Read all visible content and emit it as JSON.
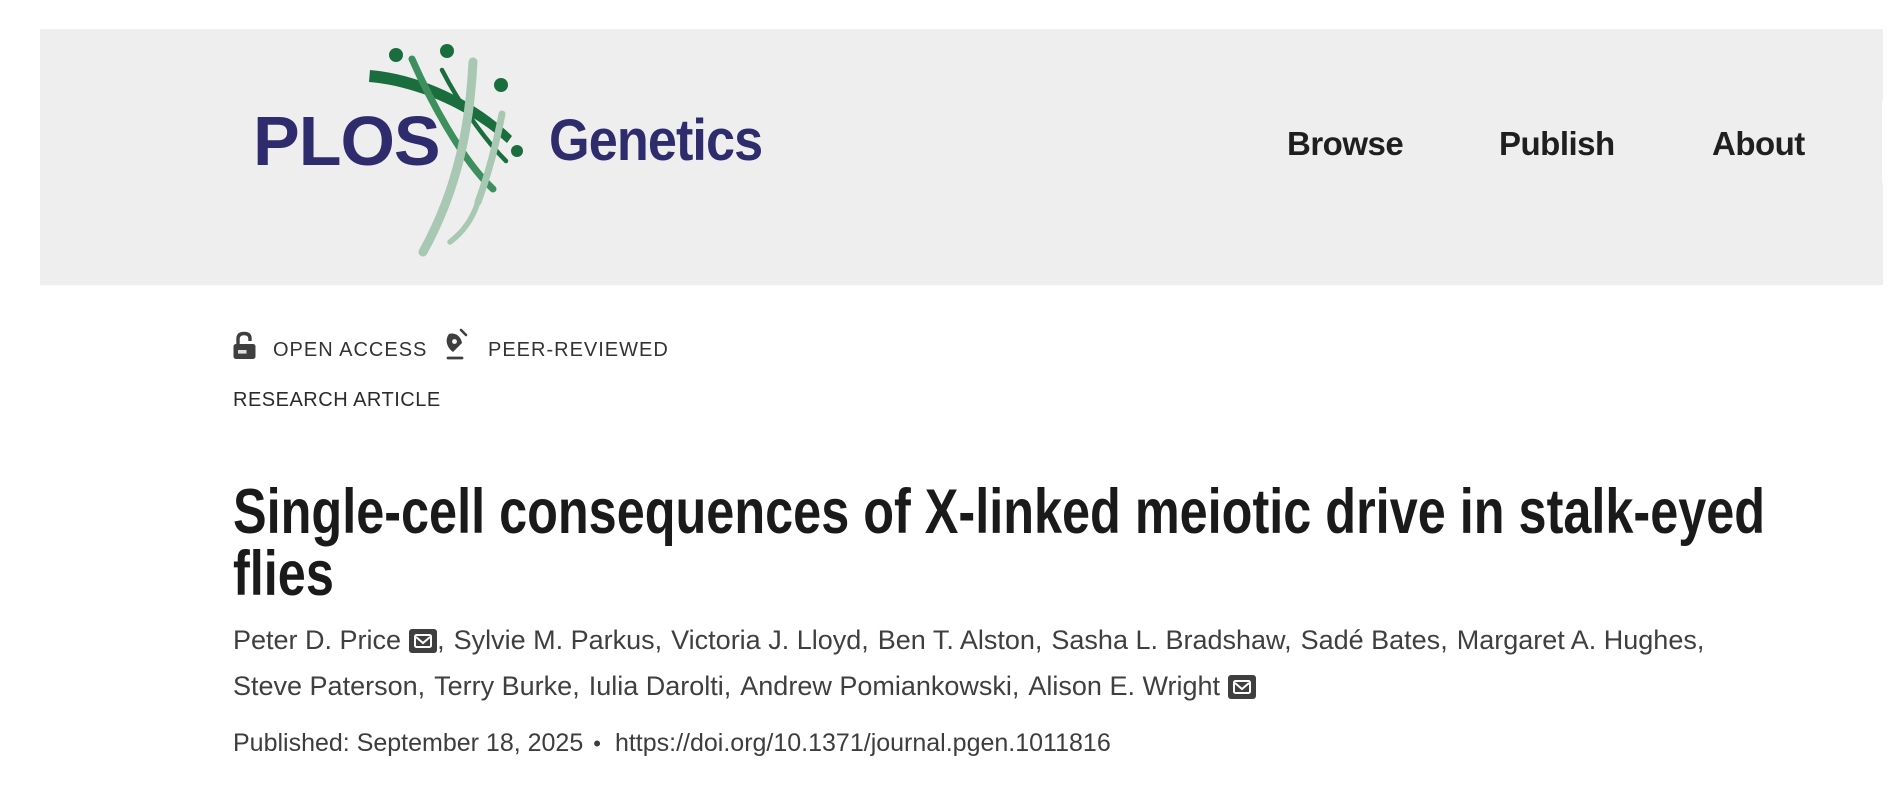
{
  "header": {
    "background": "#eeeeee",
    "logo": {
      "plos_text": "PLOS",
      "journal_text": "Genetics",
      "navy": "#2f2c6e",
      "green_dark": "#1a6e3e",
      "green_mid": "#3e8f5e",
      "green_light": "#a9c8b3"
    },
    "nav": [
      {
        "label": "Browse"
      },
      {
        "label": "Publish"
      },
      {
        "label": "About"
      }
    ]
  },
  "badges": {
    "open_access": "OPEN ACCESS",
    "peer_reviewed": "PEER-REVIEWED"
  },
  "article": {
    "kicker": "RESEARCH ARTICLE",
    "title": "Single-cell consequences of X-linked meiotic drive in stalk-eyed flies",
    "authors_line1": [
      {
        "name": "Peter D. Price",
        "email_icon": true
      },
      {
        "name": "Sylvie M. Parkus"
      },
      {
        "name": "Victoria J. Lloyd"
      },
      {
        "name": "Ben T. Alston"
      },
      {
        "name": "Sasha L. Bradshaw"
      },
      {
        "name": "Sadé Bates"
      },
      {
        "name": "Margaret A. Hughes"
      }
    ],
    "authors_line2": [
      {
        "name": "Steve Paterson"
      },
      {
        "name": "Terry Burke"
      },
      {
        "name": "Iulia Darolti"
      },
      {
        "name": "Andrew Pomiankowski"
      },
      {
        "name": "Alison E. Wright",
        "email_icon": true
      }
    ],
    "published_label": "Published: September 18, 2025",
    "separator": "•",
    "doi": "https://doi.org/10.1371/journal.pgen.1011816"
  }
}
